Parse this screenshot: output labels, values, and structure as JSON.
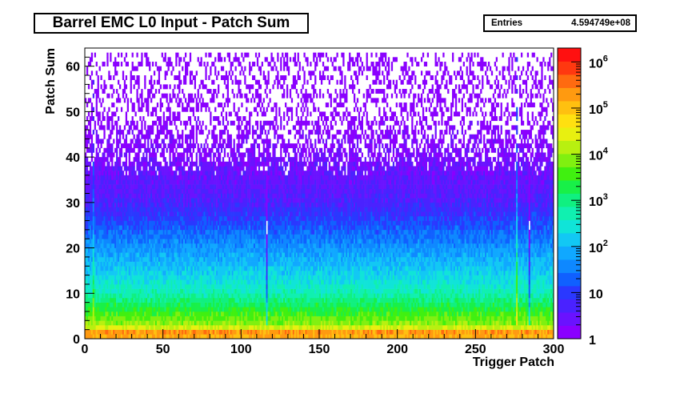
{
  "stats": {
    "entries_label": "Entries",
    "entries_value": "4.594749e+08"
  },
  "chart_data": {
    "type": "heatmap",
    "title": "Barrel EMC L0 Input - Patch Sum",
    "xlabel": "Trigger Patch",
    "ylabel": "Patch Sum",
    "xlim": [
      0,
      300
    ],
    "ylim": [
      0,
      64
    ],
    "x_ticks": [
      "0",
      "50",
      "100",
      "150",
      "200",
      "250",
      "300"
    ],
    "y_ticks": [
      "0",
      "10",
      "20",
      "30",
      "40",
      "50",
      "60"
    ],
    "color_scale": "log",
    "zlim": [
      1,
      2000000
    ],
    "z_ticks": [
      {
        "value": 1,
        "label": "1"
      },
      {
        "value": 10,
        "label": "10"
      },
      {
        "value": 100,
        "label": "10",
        "exp": "2"
      },
      {
        "value": 1000,
        "label": "10",
        "exp": "3"
      },
      {
        "value": 10000,
        "label": "10",
        "exp": "4"
      },
      {
        "value": 100000,
        "label": "10",
        "exp": "5"
      },
      {
        "value": 1000000,
        "label": "10",
        "exp": "6"
      }
    ],
    "palette": [
      "#8a00ff",
      "#6a12ff",
      "#4a22ff",
      "#2a38ff",
      "#1060ff",
      "#0e88ff",
      "#10a8ff",
      "#12c8f4",
      "#10e4d8",
      "#10f0b0",
      "#10f080",
      "#18f048",
      "#40f010",
      "#80f010",
      "#b8f010",
      "#e8f010",
      "#ffe010",
      "#ffc010",
      "#ff9a10",
      "#ff6a10",
      "#ff3810",
      "#ff1010"
    ],
    "profile": {
      "description_free": true,
      "points": [
        {
          "y": 0,
          "count": 20000
        },
        {
          "y": 1,
          "count": 1000000
        },
        {
          "y": 2,
          "count": 40000
        },
        {
          "y": 3,
          "count": 10000
        },
        {
          "y": 6,
          "count": 3000
        },
        {
          "y": 10,
          "count": 500
        },
        {
          "y": 15,
          "count": 150
        },
        {
          "y": 20,
          "count": 50
        },
        {
          "y": 25,
          "count": 15
        },
        {
          "y": 30,
          "count": 5
        },
        {
          "y": 40,
          "count": 2
        },
        {
          "y": 50,
          "count": 1
        },
        {
          "y": 62,
          "count": 1
        }
      ]
    },
    "overflow_row": {
      "y": 62,
      "count": 1
    },
    "hot_columns": [
      {
        "x": 5,
        "scale": 4
      },
      {
        "x": 116,
        "scale": 0.05
      },
      {
        "x": 276,
        "scale": 10
      },
      {
        "x": 284,
        "scale": 0.05
      }
    ]
  }
}
